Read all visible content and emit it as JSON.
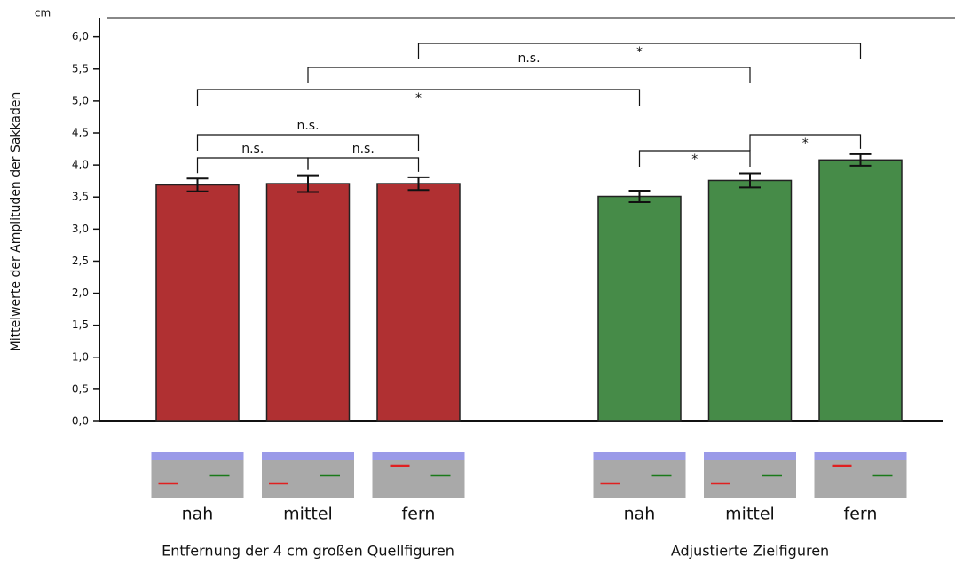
{
  "chart_data": {
    "type": "bar",
    "y_unit": "cm",
    "ylabel": "Mittelwerte der Amplituden der Sakkaden",
    "ylim": [
      0,
      6.3
    ],
    "yticks": [
      {
        "value": 0,
        "label": "0,0"
      },
      {
        "value": 0.5,
        "label": "0,5"
      },
      {
        "value": 1,
        "label": "1,0"
      },
      {
        "value": 1.5,
        "label": "1,5"
      },
      {
        "value": 2,
        "label": "2,0"
      },
      {
        "value": 2.5,
        "label": "2,5"
      },
      {
        "value": 3,
        "label": "3,0"
      },
      {
        "value": 3.5,
        "label": "3,5"
      },
      {
        "value": 4,
        "label": "4,0"
      },
      {
        "value": 4.5,
        "label": "4,5"
      },
      {
        "value": 5,
        "label": "5,0"
      },
      {
        "value": 5.5,
        "label": "5,5"
      },
      {
        "value": 6,
        "label": "6,0"
      }
    ],
    "groups": [
      {
        "name": "Entfernung der 4 cm großen Quellfiguren",
        "color": "#b03032",
        "categories": [
          "nah",
          "mittel",
          "fern"
        ],
        "values": [
          3.69,
          3.71,
          3.71
        ],
        "errors": [
          0.1,
          0.13,
          0.1
        ]
      },
      {
        "name": "Adjustierte Zielfiguren",
        "color": "#468b48",
        "categories": [
          "nah",
          "mittel",
          "fern"
        ],
        "values": [
          3.51,
          3.76,
          4.08
        ],
        "errors": [
          0.09,
          0.11,
          0.09
        ]
      }
    ],
    "brackets": [
      {
        "from": 0,
        "to": 1,
        "label": "n.s."
      },
      {
        "from": 1,
        "to": 2,
        "label": "n.s."
      },
      {
        "from": 0,
        "to": 2,
        "label": "n.s."
      },
      {
        "from": 0,
        "to": 3,
        "label": "*"
      },
      {
        "from": 1,
        "to": 4,
        "label": "n.s."
      },
      {
        "from": 2,
        "to": 5,
        "label": "*"
      },
      {
        "from": 3,
        "to": 4,
        "label": "*"
      },
      {
        "from": 4,
        "to": 5,
        "label": "*"
      }
    ]
  }
}
